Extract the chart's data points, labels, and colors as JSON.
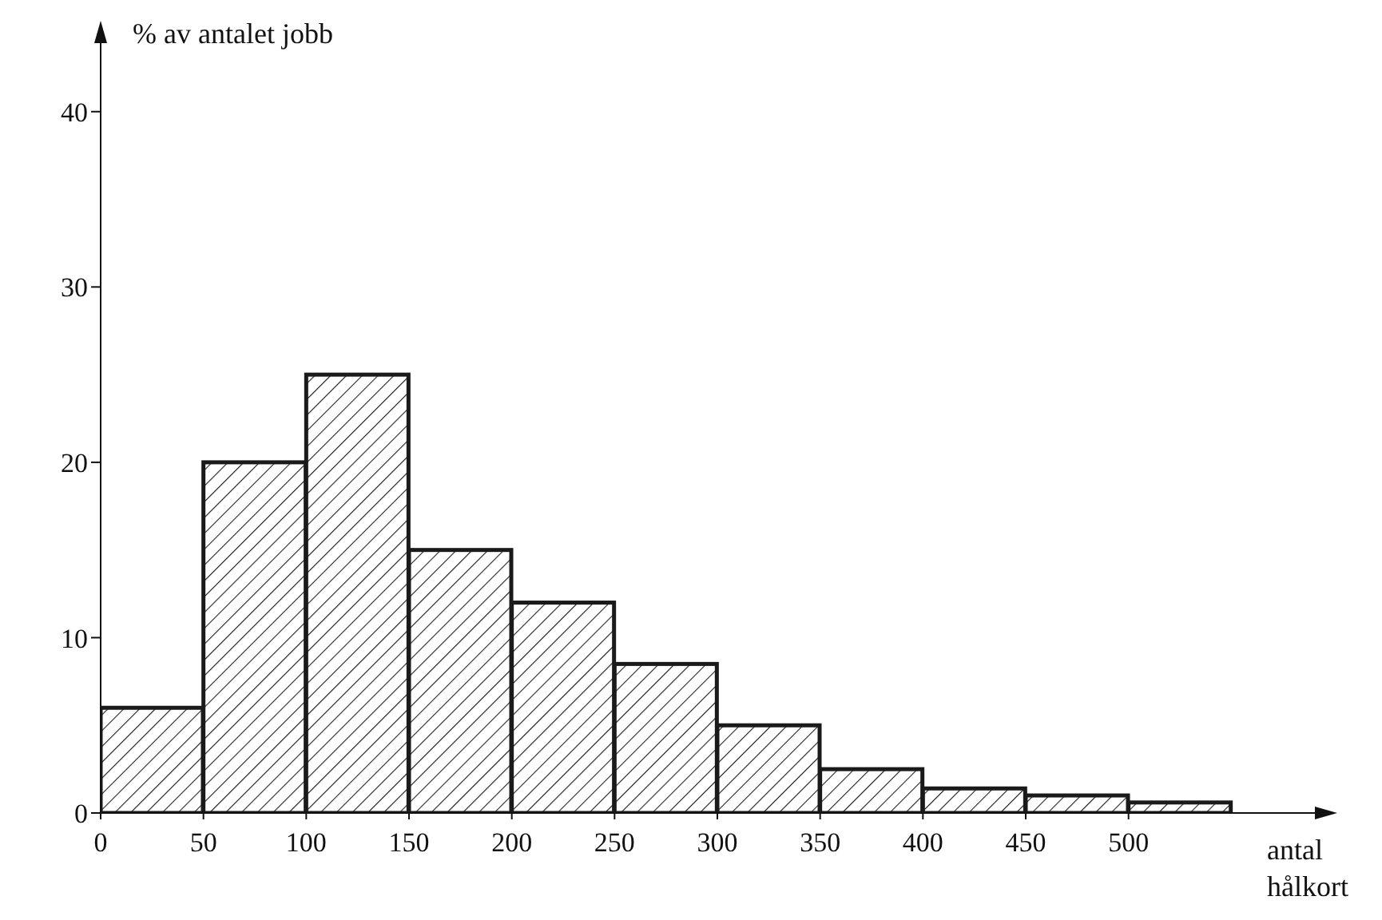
{
  "chart_data": {
    "type": "histogram",
    "ylabel": "% av antalet jobb",
    "xlabel": "antal hålkort",
    "bins": [
      0,
      50,
      100,
      150,
      200,
      250,
      300,
      350,
      400,
      450,
      500,
      550
    ],
    "values": [
      6,
      20,
      25,
      15,
      12,
      8.5,
      5,
      2.5,
      1.4,
      1,
      0.6
    ],
    "color": "#1a1a1a",
    "xlim": [
      0,
      600
    ],
    "xticks": [
      0,
      50,
      100,
      150,
      200,
      250,
      300,
      350,
      400,
      450,
      500
    ],
    "ylim": [
      0,
      45
    ],
    "yticks": [
      0,
      10,
      20,
      30,
      40
    ]
  }
}
